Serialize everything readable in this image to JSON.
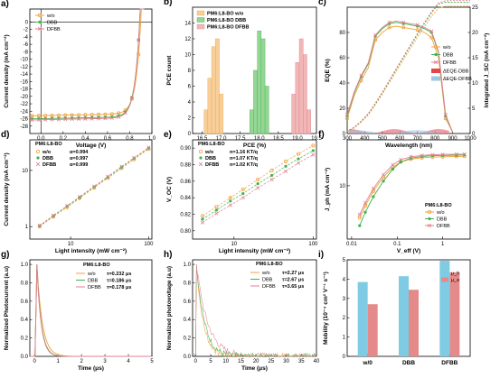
{
  "colors": {
    "wo": "#f0a23c",
    "dbb": "#3fb24f",
    "dfbb": "#e37f8f",
    "mu_h": "#7fcbe3",
    "mu_e": "#e58a8a",
    "eqe_dbb": "#e8424a",
    "eqe_dfbb": "#9ec6e6"
  },
  "chart_data": [
    {
      "id": "a",
      "panel": "a)",
      "type": "line",
      "xlabel": "Voltage (V)",
      "ylabel": "Current density (mA cm⁻²)",
      "xlim": [
        -0.1,
        1.0
      ],
      "ylim": [
        -30,
        3.5
      ],
      "xticks": [
        "0.0",
        "0.2",
        "0.4",
        "0.6",
        "0.8",
        "1.0"
      ],
      "yticks": [
        "0",
        "-2",
        "-4",
        "-6",
        "-8",
        "-10",
        "-12",
        "-14",
        "-16",
        "-18",
        "-20",
        "-22",
        "-24",
        "-26",
        "-28"
      ],
      "legend": [
        "w/o",
        "DBB",
        "DFBB"
      ],
      "series": [
        {
          "name": "w/o",
          "jsc": 25.2,
          "voc": 0.9
        },
        {
          "name": "DBB",
          "jsc": 26.0,
          "voc": 0.89
        },
        {
          "name": "DFBB",
          "jsc": 26.3,
          "voc": 0.89
        }
      ]
    },
    {
      "id": "b",
      "panel": "b)",
      "type": "bar",
      "xlabel": "PCE (%)",
      "ylabel": "PCE count",
      "xlim": [
        16.25,
        19.5
      ],
      "ylim": [
        0,
        16
      ],
      "xticks": [
        "16.5",
        "17.0",
        "17.5",
        "18.0",
        "18.5",
        "19.0",
        "19.5"
      ],
      "yticks": [
        "0",
        "2",
        "4",
        "6",
        "8",
        "10",
        "12",
        "14"
      ],
      "legend": [
        "PM6:L8-BO w/o",
        "PM6:L8-BO DBB",
        "PM6:L8-BO DFBB"
      ],
      "series": [
        {
          "name": "PM6:L8-BO w/o",
          "bins": [
            16.6,
            16.7,
            16.8,
            16.9,
            17.0
          ],
          "values": [
            3,
            7,
            11,
            12,
            5
          ]
        },
        {
          "name": "PM6:L8-BO DBB",
          "bins": [
            17.8,
            17.9,
            18.0,
            18.1,
            18.2
          ],
          "values": [
            3,
            8,
            13,
            12,
            6
          ]
        },
        {
          "name": "PM6:L8-BO DFBB",
          "bins": [
            18.9,
            19.0,
            19.1,
            19.2,
            19.3
          ],
          "values": [
            5,
            9,
            12,
            10,
            3
          ]
        }
      ]
    },
    {
      "id": "c",
      "panel": "c)",
      "type": "line",
      "xlabel": "Wavelength (nm)",
      "ylabel": "EQE (%)",
      "y2label": "Integrated J_SC (mA cm⁻²)",
      "xlim": [
        300,
        1000
      ],
      "ylim": [
        0,
        100
      ],
      "y2lim": [
        0,
        25
      ],
      "xticks": [
        "300",
        "400",
        "500",
        "600",
        "700",
        "800",
        "900",
        "1000"
      ],
      "yticks": [
        "0",
        "20",
        "40",
        "60",
        "80"
      ],
      "y2ticks": [
        "0",
        "5",
        "10",
        "15",
        "20",
        "25"
      ],
      "legend": [
        "w/o",
        "DBB",
        "DFBB",
        "ΔEQE-DBB",
        "ΔEQE-DFBB"
      ],
      "series": [
        {
          "name": "w/o",
          "x": [
            300,
            340,
            380,
            420,
            460,
            500,
            540,
            580,
            620,
            660,
            700,
            740,
            780,
            820,
            860,
            900
          ],
          "y": [
            12,
            30,
            42,
            52,
            74,
            80,
            84,
            85,
            84,
            83,
            82,
            80,
            76,
            60,
            12,
            1
          ]
        },
        {
          "name": "DBB",
          "x": [
            300,
            340,
            380,
            420,
            460,
            500,
            540,
            580,
            620,
            660,
            700,
            740,
            780,
            820,
            860,
            900
          ],
          "y": [
            14,
            32,
            45,
            55,
            77,
            83,
            87,
            88,
            87,
            86,
            85,
            83,
            80,
            64,
            14,
            1
          ]
        },
        {
          "name": "DFBB",
          "x": [
            300,
            340,
            380,
            420,
            460,
            500,
            540,
            580,
            620,
            660,
            700,
            740,
            780,
            820,
            860,
            900
          ],
          "y": [
            15,
            33,
            46,
            56,
            78,
            84,
            88,
            89,
            88,
            87,
            86,
            84,
            81,
            65,
            15,
            1
          ]
        }
      ]
    },
    {
      "id": "d",
      "panel": "d)",
      "type": "scatter",
      "legend_title": "PM6:L8-BO",
      "xlabel": "Light intensity (mW cm⁻²)",
      "ylabel": "Current density (mA cm⁻²)",
      "xscale": "log",
      "yscale": "log",
      "xlim": [
        3,
        110
      ],
      "ylim": [
        0.6,
        35
      ],
      "xticks": [
        "10",
        "100"
      ],
      "yticks": [
        "1",
        "10"
      ],
      "series": [
        {
          "name": "w/o",
          "label": "α=0.994",
          "x": [
            4,
            6,
            9,
            13,
            20,
            30,
            45,
            65,
            100
          ],
          "y": [
            1.0,
            1.5,
            2.2,
            3.2,
            4.9,
            7.3,
            10.9,
            15.7,
            24
          ]
        },
        {
          "name": "DBB",
          "label": "α=0.997",
          "x": [
            4,
            6,
            9,
            13,
            20,
            30,
            45,
            65,
            100
          ],
          "y": [
            1.03,
            1.55,
            2.3,
            3.3,
            5.1,
            7.6,
            11.4,
            16.4,
            25
          ]
        },
        {
          "name": "DFBB",
          "label": "α=0.999",
          "x": [
            4,
            6,
            9,
            13,
            20,
            30,
            45,
            65,
            100
          ],
          "y": [
            1.05,
            1.58,
            2.35,
            3.4,
            5.2,
            7.8,
            11.7,
            16.8,
            25.6
          ]
        }
      ]
    },
    {
      "id": "e",
      "panel": "e)",
      "type": "scatter",
      "legend_title": "PM6:L8-BO",
      "xlabel": "Light intensity (mW cm⁻²)",
      "ylabel": "V_OC (V)",
      "xscale": "log",
      "xlim": [
        3,
        110
      ],
      "ylim": [
        0.79,
        0.91
      ],
      "xticks": [
        "10",
        "100"
      ],
      "yticks": [
        "0.80",
        "0.82",
        "0.84",
        "0.86",
        "0.88",
        "0.90"
      ],
      "series": [
        {
          "name": "w/o",
          "label": "n=1.16 KT/q",
          "x": [
            4,
            6,
            9,
            13,
            20,
            30,
            45,
            65,
            100
          ],
          "y": [
            0.818,
            0.829,
            0.84,
            0.85,
            0.862,
            0.873,
            0.884,
            0.893,
            0.903
          ]
        },
        {
          "name": "DBB",
          "label": "n=1.07 KT/q",
          "x": [
            4,
            6,
            9,
            13,
            20,
            30,
            45,
            65,
            100
          ],
          "y": [
            0.814,
            0.825,
            0.836,
            0.845,
            0.857,
            0.867,
            0.878,
            0.887,
            0.897
          ]
        },
        {
          "name": "DFBB",
          "label": "n=1.02 KT/q",
          "x": [
            4,
            6,
            9,
            13,
            20,
            30,
            45,
            65,
            100
          ],
          "y": [
            0.81,
            0.821,
            0.831,
            0.84,
            0.852,
            0.862,
            0.872,
            0.882,
            0.892
          ]
        }
      ]
    },
    {
      "id": "f",
      "panel": "f)",
      "type": "line",
      "legend_title": "PM6:L8-BO",
      "xlabel": "V_eff (V)",
      "ylabel": "J_ph (mA cm⁻²)",
      "xscale": "log",
      "yscale": "log",
      "xlim": [
        0.008,
        4
      ],
      "ylim": [
        2,
        40
      ],
      "xticks": [
        "0.01",
        "0.1",
        "1"
      ],
      "yticks": [
        "10"
      ],
      "series": [
        {
          "name": "w/o",
          "x": [
            0.015,
            0.02,
            0.03,
            0.05,
            0.08,
            0.12,
            0.2,
            0.35,
            0.6,
            1,
            2,
            3
          ],
          "y": [
            3.8,
            5.5,
            8.5,
            13,
            17.5,
            20.5,
            22.3,
            23.3,
            23.8,
            24,
            24.2,
            24.3
          ]
        },
        {
          "name": "DBB",
          "x": [
            0.015,
            0.02,
            0.03,
            0.05,
            0.08,
            0.12,
            0.2,
            0.35,
            0.6,
            1,
            2,
            3
          ],
          "y": [
            3.0,
            4.5,
            7.2,
            11.5,
            16.5,
            20.5,
            23,
            24.2,
            24.8,
            25,
            25.2,
            25.3
          ]
        },
        {
          "name": "DFBB",
          "x": [
            0.015,
            0.02,
            0.03,
            0.05,
            0.08,
            0.12,
            0.2,
            0.35,
            0.6,
            1,
            2,
            3
          ],
          "y": [
            4.2,
            6,
            9.2,
            14,
            18.8,
            22,
            24,
            25,
            25.5,
            25.7,
            25.9,
            26
          ]
        }
      ]
    },
    {
      "id": "g",
      "panel": "g)",
      "type": "line",
      "legend_title": "PM6:L8-BO",
      "xlabel": "Time (μs)",
      "ylabel": "Normalized Photocurrent (a.u)",
      "xlim": [
        -0.2,
        5
      ],
      "ylim": [
        0,
        1.05
      ],
      "xticks": [
        "0",
        "1",
        "2",
        "3",
        "4",
        "5"
      ],
      "yticks": [
        "0.0",
        "0.2",
        "0.4",
        "0.6",
        "0.8",
        "1.0"
      ],
      "series": [
        {
          "name": "w/o",
          "label": "τ=0.232 μs",
          "tau": 0.232
        },
        {
          "name": "DBB",
          "label": "τ=0.186 μs",
          "tau": 0.186
        },
        {
          "name": "DFBB",
          "label": "τ=0.178 μs",
          "tau": 0.178
        }
      ]
    },
    {
      "id": "h",
      "panel": "h)",
      "type": "line",
      "legend_title": "PM6:L8-BO",
      "xlabel": "Time (μs)",
      "ylabel": "Normalized photovoltage (a.u)",
      "xlim": [
        -1,
        40
      ],
      "ylim": [
        0,
        1.05
      ],
      "xticks": [
        "0",
        "5",
        "10",
        "15",
        "20",
        "25",
        "30",
        "35",
        "40"
      ],
      "yticks": [
        "0.0",
        "0.2",
        "0.4",
        "0.6",
        "0.8",
        "1.0"
      ],
      "series": [
        {
          "name": "w/o",
          "label": "τ=2.27 μs",
          "tau": 2.27
        },
        {
          "name": "DBB",
          "label": "τ=2.67 μs",
          "tau": 2.67
        },
        {
          "name": "DFBB",
          "label": "τ=3.65 μs",
          "tau": 3.65
        }
      ]
    },
    {
      "id": "i",
      "panel": "i)",
      "type": "bar",
      "ylabel": "Mobility (10⁻⁴ cm² V⁻¹ s⁻¹)",
      "categories": [
        "w/0",
        "DBB",
        "DFBB"
      ],
      "ylim": [
        0,
        5
      ],
      "yticks": [
        "0",
        "1",
        "2",
        "3",
        "4",
        "5"
      ],
      "legend": [
        "μ_h",
        "μ_e"
      ],
      "series": [
        {
          "name": "μ_h",
          "values": [
            3.85,
            4.15,
            4.95
          ]
        },
        {
          "name": "μ_e",
          "values": [
            2.7,
            3.45,
            4.35
          ]
        }
      ]
    }
  ]
}
